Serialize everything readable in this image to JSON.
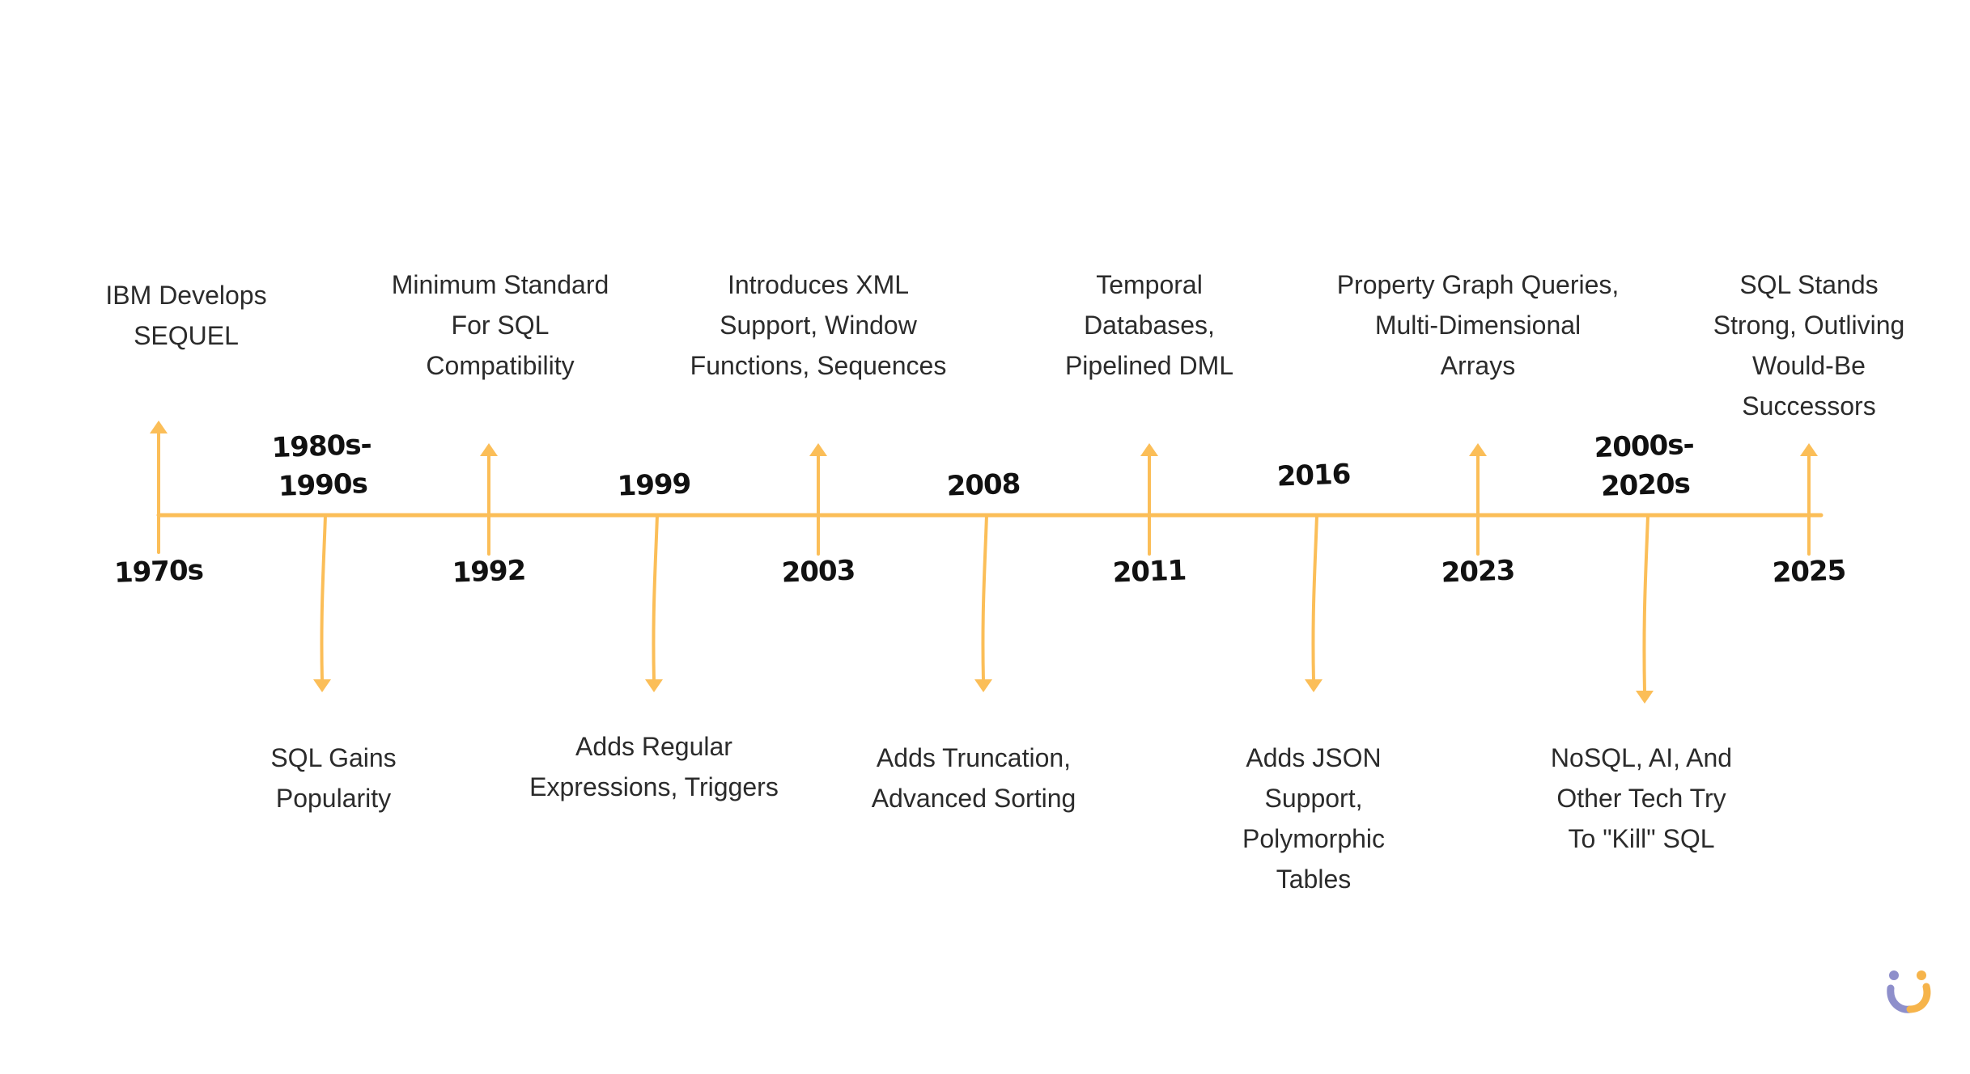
{
  "colors": {
    "accent": "#FBBE58",
    "logo_purple": "#8E8FCB",
    "logo_orange": "#F6B44B",
    "text": "#2b2b2b",
    "year_text": "#111111"
  },
  "logo": {
    "icon": "brand-logo-icon"
  },
  "timeline": {
    "events": [
      {
        "year": "1970s",
        "description": "IBM Develops\nSEQUEL",
        "side": "above"
      },
      {
        "year": "1980s-\n1990s",
        "description": "SQL Gains\nPopularity",
        "side": "below"
      },
      {
        "year": "1992",
        "description": "Minimum Standard\nFor SQL\nCompatibility",
        "side": "above"
      },
      {
        "year": "1999",
        "description": "Adds Regular\nExpressions, Triggers",
        "side": "below"
      },
      {
        "year": "2003",
        "description": "Introduces XML\nSupport, Window\nFunctions, Sequences",
        "side": "above"
      },
      {
        "year": "2008",
        "description": "Adds Truncation,\nAdvanced Sorting",
        "side": "below"
      },
      {
        "year": "2011",
        "description": "Temporal\nDatabases,\nPipelined DML",
        "side": "above"
      },
      {
        "year": "2016",
        "description": "Adds JSON\nSupport,\nPolymorphic\nTables",
        "side": "below"
      },
      {
        "year": "2023",
        "description": "Property Graph Queries,\nMulti-Dimensional\nArrays",
        "side": "above"
      },
      {
        "year": "2000s-\n2020s",
        "description": "NoSQL, AI, And\nOther Tech Try\nTo \"Kill\" SQL",
        "side": "below"
      },
      {
        "year": "2025",
        "description": "SQL Stands\nStrong, Outliving\nWould-Be\nSuccessors",
        "side": "above"
      }
    ]
  }
}
